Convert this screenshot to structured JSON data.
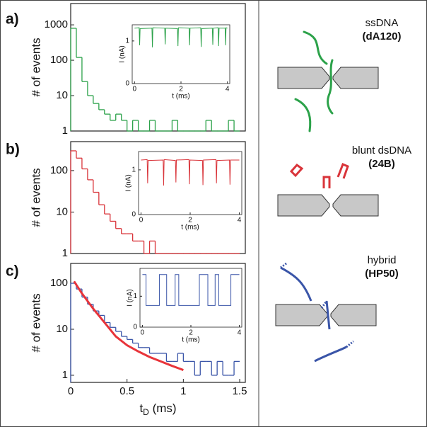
{
  "chart_data": [
    {
      "type": "histogram",
      "label": "a)",
      "ylabel": "# of events",
      "log": true,
      "color": "#2ca24a",
      "xlim": [
        0,
        1.55
      ],
      "ylim": [
        1,
        4000
      ],
      "yticks": [
        1,
        10,
        100,
        1000
      ],
      "bins": [
        0,
        0.05,
        0.1,
        0.15,
        0.2,
        0.25,
        0.3,
        0.35,
        0.4,
        0.45,
        0.5,
        0.55,
        0.6,
        0.65,
        0.7,
        0.75,
        0.8,
        0.85,
        0.9,
        0.95,
        1.0,
        1.05,
        1.1,
        1.15,
        1.2,
        1.25,
        1.3,
        1.35,
        1.4,
        1.45,
        1.5
      ],
      "values": [
        800,
        120,
        25,
        10,
        6,
        4,
        3,
        2,
        3,
        2,
        1,
        2,
        1,
        1,
        2,
        1,
        1,
        1,
        2,
        1,
        1,
        1,
        1,
        1,
        2,
        1,
        1,
        1,
        2,
        1
      ]
    },
    {
      "type": "histogram",
      "label": "b)",
      "ylabel": "# of events",
      "log": true,
      "color": "#d9343a",
      "xlim": [
        0,
        1.55
      ],
      "ylim": [
        1,
        500
      ],
      "yticks": [
        1,
        10,
        100
      ],
      "bins": [
        0,
        0.05,
        0.1,
        0.15,
        0.2,
        0.25,
        0.3,
        0.35,
        0.4,
        0.45,
        0.5,
        0.55,
        0.6,
        0.65,
        0.7,
        0.75,
        0.8,
        0.85,
        0.9,
        0.95,
        1.0,
        1.05,
        1.1,
        1.15,
        1.2,
        1.25,
        1.3,
        1.35,
        1.4,
        1.45,
        1.5
      ],
      "values": [
        300,
        200,
        110,
        60,
        30,
        15,
        9,
        6,
        4,
        3,
        3,
        2,
        2,
        1,
        2,
        1,
        1,
        1,
        1,
        1,
        1,
        1,
        1,
        1,
        1,
        1,
        1,
        1,
        1,
        1
      ]
    },
    {
      "type": "histogram",
      "label": "c)",
      "ylabel": "# of events",
      "xlabel": {
        "main": "t",
        "sub": "D",
        "rest": " (ms)"
      },
      "log": true,
      "color": "#3a55a8",
      "xlim": [
        0,
        1.55
      ],
      "ylim": [
        0.7,
        270
      ],
      "yticks": [
        1,
        10,
        100
      ],
      "xticks": [
        0,
        0.5,
        1,
        1.5
      ],
      "bins": [
        0,
        0.05,
        0.1,
        0.15,
        0.2,
        0.25,
        0.3,
        0.35,
        0.4,
        0.45,
        0.5,
        0.55,
        0.6,
        0.65,
        0.7,
        0.75,
        0.8,
        0.85,
        0.9,
        0.95,
        1.0,
        1.05,
        1.1,
        1.15,
        1.2,
        1.25,
        1.3,
        1.35,
        1.4,
        1.45,
        1.5
      ],
      "values": [
        100,
        75,
        50,
        35,
        25,
        20,
        14,
        11,
        9,
        7,
        6,
        5,
        4,
        4,
        3,
        3,
        3,
        2,
        2,
        3,
        2,
        2,
        1,
        2,
        2,
        1,
        2,
        1,
        1,
        2
      ],
      "fit": {
        "color": "#e8343a",
        "x": [
          0.03,
          0.1,
          0.2,
          0.3,
          0.4,
          0.5,
          0.6,
          0.7,
          0.8,
          0.9,
          1.0
        ],
        "values": [
          110,
          60,
          28,
          14,
          7,
          4.5,
          3.3,
          2.5,
          2,
          1.6,
          1.3
        ]
      }
    },
    {
      "type": "line",
      "xlabel": "t (ms)",
      "ylabel": "I (nA)",
      "color": "#2ca24a",
      "xlim": [
        -0.1,
        4.1
      ],
      "ylim": [
        0,
        1.38
      ],
      "xticks": [
        0,
        2,
        4
      ],
      "yticks": [
        0,
        1
      ],
      "x": [
        0,
        0.2,
        0.22,
        0.24,
        0.75,
        0.77,
        0.79,
        1.3,
        1.32,
        1.34,
        1.85,
        1.87,
        1.89,
        2.35,
        2.37,
        2.39,
        2.85,
        2.87,
        2.89,
        3.35,
        3.37,
        3.39,
        3.6,
        3.62,
        3.64,
        3.9,
        3.92,
        3.94,
        4
      ],
      "values": [
        1.3,
        1.31,
        0.9,
        1.29,
        1.3,
        0.85,
        1.31,
        1.3,
        0.92,
        1.3,
        1.29,
        0.88,
        1.31,
        1.3,
        0.9,
        1.3,
        1.31,
        0.86,
        1.29,
        1.3,
        0.91,
        1.3,
        1.31,
        0.88,
        1.3,
        1.3,
        0.9,
        1.31,
        1.3
      ]
    },
    {
      "type": "line",
      "xlabel": "t (ms)",
      "ylabel": "I (nA)",
      "color": "#d9343a",
      "xlim": [
        -0.1,
        4.1
      ],
      "ylim": [
        0,
        1.41
      ],
      "xticks": [
        0,
        2,
        4
      ],
      "yticks": [
        0,
        1
      ],
      "x": [
        0,
        0.25,
        0.27,
        0.29,
        0.9,
        0.92,
        0.94,
        1.4,
        1.42,
        1.44,
        1.95,
        1.97,
        1.99,
        2.5,
        2.52,
        2.54,
        3.05,
        3.07,
        3.09,
        3.6,
        3.62,
        3.64,
        4
      ],
      "values": [
        1.22,
        1.23,
        0.7,
        1.21,
        1.22,
        0.65,
        1.23,
        1.21,
        0.72,
        1.22,
        1.23,
        0.68,
        1.22,
        1.21,
        0.66,
        1.22,
        1.23,
        0.7,
        1.21,
        1.22,
        0.67,
        1.22,
        1.22
      ]
    },
    {
      "type": "line",
      "xlabel": "t (ms)",
      "ylabel": "I (nA)",
      "color": "#3a55a8",
      "xlim": [
        -0.1,
        4.1
      ],
      "ylim": [
        0,
        1.9
      ],
      "xticks": [
        0,
        2,
        4
      ],
      "yticks": [
        0,
        1
      ],
      "x": [
        0,
        0.15,
        0.15,
        0.7,
        0.7,
        1.0,
        1.0,
        1.35,
        1.35,
        1.5,
        1.5,
        2.35,
        2.35,
        2.7,
        2.7,
        3.0,
        3.0,
        3.15,
        3.15,
        3.65,
        3.65,
        4
      ],
      "values": [
        1.7,
        1.7,
        0.7,
        0.7,
        1.7,
        1.7,
        0.7,
        0.7,
        1.7,
        1.7,
        0.7,
        0.7,
        1.7,
        1.7,
        0.7,
        0.7,
        1.7,
        1.7,
        0.7,
        0.7,
        1.7,
        1.7
      ]
    }
  ],
  "diagrams": [
    {
      "name": "ssDNA",
      "code": "(dA120)"
    },
    {
      "name": "blunt dsDNA",
      "code": "(24B)"
    },
    {
      "name": "hybrid",
      "code": "(HP50)"
    }
  ]
}
